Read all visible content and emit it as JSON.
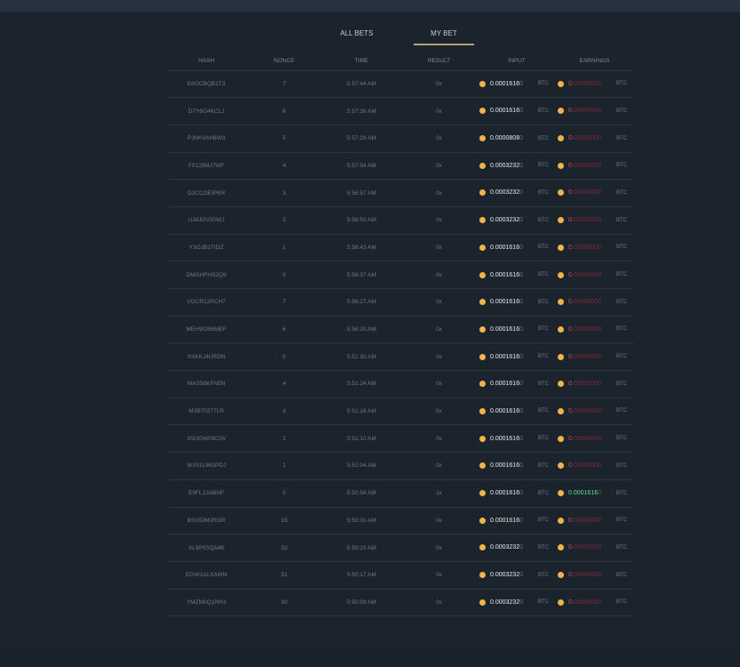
{
  "tabs": [
    {
      "label": "ALL BETS",
      "active": false
    },
    {
      "label": "MY BET",
      "active": true
    }
  ],
  "columns": [
    "HASH",
    "NONCE",
    "TIME",
    "RESULT",
    "INPUT",
    "EARNINGS"
  ],
  "currency": "BTC",
  "colors": {
    "accent": "#b3a66f",
    "coin": "#f2b44a",
    "loss": "#e0425a",
    "win": "#5fe08a"
  },
  "rows": [
    {
      "hash": "E6OCBQB1T3",
      "nonce": "7",
      "time": "5:57:44 AM",
      "result": "0x",
      "input": [
        "0.0001616",
        "0"
      ],
      "earnings": [
        "0.",
        "00000000"
      ],
      "win": false
    },
    {
      "hash": "D7Y6G4KCLJ",
      "nonce": "6",
      "time": "5:57:36 AM",
      "result": "0x",
      "input": [
        "0.0001616",
        "0"
      ],
      "earnings": [
        "0.",
        "00000000"
      ],
      "win": false
    },
    {
      "hash": "PJHKVAH8W3",
      "nonce": "5",
      "time": "5:57:29 AM",
      "result": "0x",
      "input": [
        "0.0000808",
        "0"
      ],
      "earnings": [
        "0.",
        "00000000"
      ],
      "win": false
    },
    {
      "hash": "F01296U7WF",
      "nonce": "4",
      "time": "5:57:04 AM",
      "result": "0x",
      "input": [
        "0.0003232",
        "0"
      ],
      "earnings": [
        "0.",
        "00000000"
      ],
      "win": false
    },
    {
      "hash": "D2CCOEIPKR",
      "nonce": "3",
      "time": "5:56:57 AM",
      "result": "0x",
      "input": [
        "0.0003232",
        "0"
      ],
      "earnings": [
        "0.",
        "00000000"
      ],
      "win": false
    },
    {
      "hash": "UJ4JGV20WJ",
      "nonce": "2",
      "time": "5:56:50 AM",
      "result": "0x",
      "input": [
        "0.0003232",
        "0"
      ],
      "earnings": [
        "0.",
        "00000000"
      ],
      "win": false
    },
    {
      "hash": "Y3OJB1TIDZ",
      "nonce": "1",
      "time": "5:56:43 AM",
      "result": "0x",
      "input": [
        "0.0001616",
        "0"
      ],
      "earnings": [
        "0.",
        "00000000"
      ],
      "win": false
    },
    {
      "hash": "DMGHFHS2Q9",
      "nonce": "0",
      "time": "5:56:37 AM",
      "result": "0x",
      "input": [
        "0.0001616",
        "0"
      ],
      "earnings": [
        "0.",
        "00000000"
      ],
      "win": false
    },
    {
      "hash": "VGCR12RCH7",
      "nonce": "7",
      "time": "5:56:27 AM",
      "result": "0x",
      "input": [
        "0.0001616",
        "0"
      ],
      "earnings": [
        "0.",
        "00000000"
      ],
      "win": false
    },
    {
      "hash": "MEHW358MEF",
      "nonce": "6",
      "time": "5:56:20 AM",
      "result": "0x",
      "input": [
        "0.0001616",
        "0"
      ],
      "earnings": [
        "0.",
        "00000000"
      ],
      "win": false
    },
    {
      "hash": "XSKKJ4URDN",
      "nonce": "5",
      "time": "5:51:30 AM",
      "result": "0x",
      "input": [
        "0.0001616",
        "0"
      ],
      "earnings": [
        "0.",
        "00000000"
      ],
      "win": false
    },
    {
      "hash": "MAS56KFN5N",
      "nonce": "4",
      "time": "5:51:24 AM",
      "result": "0x",
      "input": [
        "0.0001616",
        "0"
      ],
      "earnings": [
        "0.",
        "00000000"
      ],
      "win": false
    },
    {
      "hash": "M3B70277LR",
      "nonce": "3",
      "time": "5:51:18 AM",
      "result": "0x",
      "input": [
        "0.0001616",
        "0"
      ],
      "earnings": [
        "0.",
        "00000000"
      ],
      "win": false
    },
    {
      "hash": "X5OGW09C0V",
      "nonce": "2",
      "time": "5:51:10 AM",
      "result": "0x",
      "input": [
        "0.0001616",
        "0"
      ],
      "earnings": [
        "0.",
        "00000000"
      ],
      "win": false
    },
    {
      "hash": "W3S1LMGPDJ",
      "nonce": "1",
      "time": "5:51:04 AM",
      "result": "0x",
      "input": [
        "0.0001616",
        "0"
      ],
      "earnings": [
        "0.",
        "00000000"
      ],
      "win": false
    },
    {
      "hash": "E9FL13ABNF",
      "nonce": "0",
      "time": "5:50:58 AM",
      "result": "1x",
      "input": [
        "0.0001616",
        "0"
      ],
      "earnings": [
        "0.0001616",
        "0"
      ],
      "win": true
    },
    {
      "hash": "BSXIDM2RGR",
      "nonce": "33",
      "time": "5:50:30 AM",
      "result": "0x",
      "input": [
        "0.0001616",
        "0"
      ],
      "earnings": [
        "0.",
        "00000000"
      ],
      "win": false
    },
    {
      "hash": "XL9P0SQ54B",
      "nonce": "32",
      "time": "5:50:23 AM",
      "result": "0x",
      "input": [
        "0.0003232",
        "0"
      ],
      "earnings": [
        "0.",
        "00000000"
      ],
      "win": false
    },
    {
      "hash": "EGW1ALXAWN",
      "nonce": "31",
      "time": "5:50:17 AM",
      "result": "0x",
      "input": [
        "0.0003232",
        "0"
      ],
      "earnings": [
        "0.",
        "00000000"
      ],
      "win": false
    },
    {
      "hash": "YMZM0Q1RH3",
      "nonce": "30",
      "time": "5:50:09 AM",
      "result": "0x",
      "input": [
        "0.0003232",
        "0"
      ],
      "earnings": [
        "0.",
        "00000000"
      ],
      "win": false
    }
  ]
}
